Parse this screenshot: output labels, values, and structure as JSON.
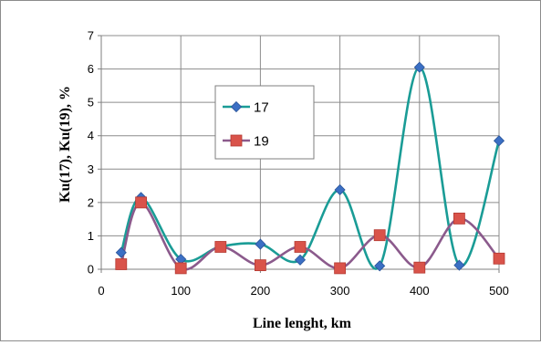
{
  "chart_data": {
    "type": "line",
    "xlabel": "Line lenght, km",
    "ylabel": "Ku(17), Ku(19), %",
    "xlim": [
      0,
      500
    ],
    "ylim": [
      0,
      7
    ],
    "x_ticks": [
      0,
      100,
      200,
      300,
      400,
      500
    ],
    "y_ticks": [
      0,
      1,
      2,
      3,
      4,
      5,
      6,
      7
    ],
    "grid": true,
    "legend_position": "upper-center",
    "series": [
      {
        "name": "17",
        "color": "#1a9c96",
        "marker": "diamond",
        "marker_color": "#3b6fc4",
        "x": [
          25,
          50,
          100,
          150,
          200,
          250,
          300,
          350,
          400,
          450,
          500
        ],
        "y": [
          0.5,
          2.15,
          0.3,
          0.68,
          0.75,
          0.28,
          2.38,
          0.1,
          6.05,
          0.12,
          3.85
        ]
      },
      {
        "name": "19",
        "color": "#8b5a8c",
        "marker": "square",
        "marker_color": "#d9534a",
        "x": [
          25,
          50,
          100,
          150,
          200,
          250,
          300,
          350,
          400,
          450,
          500
        ],
        "y": [
          0.15,
          2.0,
          0.03,
          0.67,
          0.12,
          0.67,
          0.03,
          1.02,
          0.05,
          1.52,
          0.32
        ]
      }
    ]
  }
}
